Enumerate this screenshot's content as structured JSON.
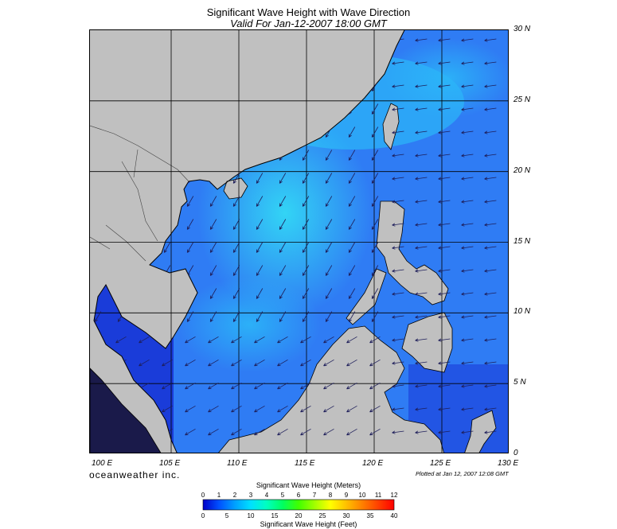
{
  "map": {
    "title": "Significant Wave Height with Wave Direction",
    "subtitle": "Valid For Jan-12-2007 18:00 GMT",
    "latitude_labels": [
      "30 N",
      "25 N",
      "20 N",
      "15 N",
      "10 N",
      "5 N",
      "0"
    ],
    "longitude_labels": [
      "100 E",
      "105 E",
      "110 E",
      "115 E",
      "120 E",
      "125 E",
      "130 E"
    ],
    "lon_range": [
      99,
      130
    ],
    "lat_range": [
      0,
      30
    ],
    "brand": "oceanweather inc.",
    "plotted": "Plotted at Jan 12, 2007 12:08 GMT",
    "colors": {
      "land": "#c0c0c0",
      "sea_low": "#1a3cd9",
      "sea_mid": "#2f7cf4",
      "sea_high": "#33d9f5",
      "arrow": "#1e1e5a"
    }
  },
  "legend": {
    "meters_title": "Significant Wave Height (Meters)",
    "feet_title": "Significant Wave Height (Feet)",
    "meters_ticks": [
      "0",
      "1",
      "2",
      "3",
      "4",
      "5",
      "6",
      "7",
      "8",
      "9",
      "10",
      "11",
      "12"
    ],
    "feet_ticks": [
      "0",
      "5",
      "10",
      "15",
      "20",
      "25",
      "30",
      "35",
      "40"
    ],
    "gradient": [
      "#0000c8",
      "#0050ff",
      "#00a0ff",
      "#00e0ff",
      "#00ffc0",
      "#00ff60",
      "#40ff00",
      "#a0ff00",
      "#ffff00",
      "#ffc000",
      "#ff8000",
      "#ff4000",
      "#ff0000"
    ]
  }
}
